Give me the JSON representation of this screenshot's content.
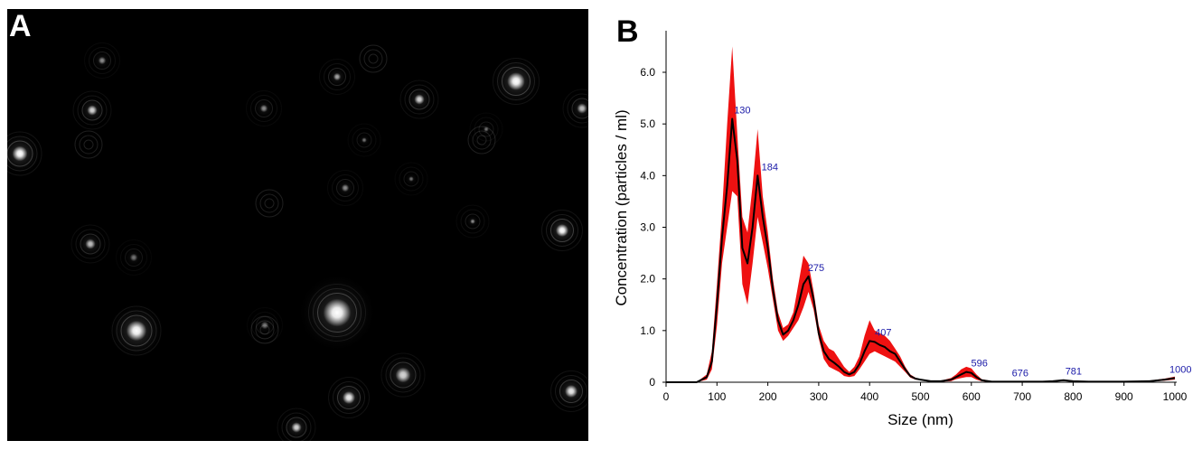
{
  "panel_a": {
    "label": "A",
    "image_description": "dark-field microscopy frame showing bright particles with diffraction rings"
  },
  "panel_b": {
    "label": "B"
  },
  "chart_data": {
    "type": "area",
    "title": "",
    "xlabel": "Size (nm)",
    "ylabel": "Concentration (particles / ml)",
    "xlim": [
      0,
      1000
    ],
    "ylim": [
      0,
      6.8
    ],
    "x_ticks": [
      "0",
      "100",
      "200",
      "300",
      "400",
      "500",
      "600",
      "700",
      "800",
      "900",
      "1000"
    ],
    "y_ticks": [
      "0",
      "1.0",
      "2.0",
      "3.0",
      "4.0",
      "5.0",
      "6.0"
    ],
    "grid": false,
    "series": [
      {
        "role": "mean",
        "color": "#000000",
        "x": [
          0,
          60,
          80,
          90,
          100,
          110,
          120,
          130,
          140,
          150,
          160,
          170,
          180,
          190,
          200,
          210,
          220,
          230,
          240,
          250,
          260,
          270,
          280,
          290,
          300,
          310,
          320,
          330,
          340,
          350,
          360,
          370,
          380,
          390,
          400,
          410,
          420,
          430,
          440,
          450,
          460,
          470,
          480,
          490,
          500,
          520,
          540,
          560,
          570,
          580,
          590,
          600,
          610,
          620,
          640,
          660,
          676,
          700,
          720,
          740,
          760,
          781,
          800,
          830,
          860,
          900,
          950,
          980,
          1000
        ],
        "values": [
          0,
          0,
          0.1,
          0.4,
          1.5,
          2.8,
          3.8,
          5.1,
          4.3,
          2.6,
          2.3,
          3.0,
          4.0,
          3.2,
          2.6,
          1.8,
          1.2,
          0.92,
          1.0,
          1.2,
          1.5,
          1.9,
          2.05,
          1.6,
          0.95,
          0.6,
          0.45,
          0.38,
          0.3,
          0.2,
          0.15,
          0.2,
          0.35,
          0.6,
          0.8,
          0.78,
          0.72,
          0.68,
          0.6,
          0.55,
          0.4,
          0.25,
          0.12,
          0.07,
          0.05,
          0.02,
          0.02,
          0.05,
          0.1,
          0.15,
          0.2,
          0.18,
          0.1,
          0.04,
          0.01,
          0.01,
          0.01,
          0.01,
          0.01,
          0.01,
          0.02,
          0.04,
          0.02,
          0.01,
          0.01,
          0.01,
          0.02,
          0.05,
          0.08
        ]
      },
      {
        "role": "error_band",
        "color": "#ee1111",
        "x": [
          0,
          60,
          80,
          90,
          100,
          110,
          120,
          130,
          140,
          150,
          160,
          170,
          180,
          190,
          200,
          210,
          220,
          230,
          240,
          250,
          260,
          270,
          280,
          290,
          300,
          310,
          320,
          330,
          340,
          350,
          360,
          370,
          380,
          390,
          400,
          410,
          420,
          430,
          440,
          450,
          460,
          470,
          480,
          490,
          500,
          520,
          540,
          560,
          570,
          580,
          590,
          600,
          610,
          620,
          640,
          660,
          676,
          700,
          720,
          740,
          760,
          781,
          800,
          830,
          860,
          900,
          950,
          980,
          1000
        ],
        "upper": [
          0,
          0,
          0.15,
          0.6,
          1.9,
          3.3,
          5.0,
          6.5,
          4.8,
          3.2,
          2.9,
          3.8,
          4.9,
          3.6,
          2.9,
          2.0,
          1.35,
          1.05,
          1.12,
          1.35,
          1.9,
          2.45,
          2.3,
          1.75,
          1.1,
          0.8,
          0.65,
          0.6,
          0.45,
          0.3,
          0.2,
          0.3,
          0.5,
          0.9,
          1.2,
          1.0,
          0.95,
          0.9,
          0.8,
          0.65,
          0.5,
          0.3,
          0.15,
          0.09,
          0.06,
          0.03,
          0.03,
          0.08,
          0.15,
          0.25,
          0.3,
          0.27,
          0.15,
          0.06,
          0.02,
          0.02,
          0.02,
          0.02,
          0.02,
          0.02,
          0.03,
          0.05,
          0.03,
          0.02,
          0.02,
          0.02,
          0.03,
          0.07,
          0.11
        ],
        "lower": [
          0,
          0,
          0.05,
          0.25,
          1.1,
          2.3,
          3.0,
          3.7,
          3.6,
          1.9,
          1.5,
          2.3,
          3.2,
          2.7,
          2.2,
          1.6,
          1.0,
          0.8,
          0.9,
          1.05,
          1.2,
          1.45,
          1.75,
          1.4,
          0.85,
          0.45,
          0.3,
          0.25,
          0.2,
          0.12,
          0.1,
          0.12,
          0.25,
          0.4,
          0.55,
          0.6,
          0.55,
          0.5,
          0.45,
          0.4,
          0.3,
          0.2,
          0.09,
          0.05,
          0.04,
          0.01,
          0.01,
          0.02,
          0.06,
          0.08,
          0.1,
          0.1,
          0.05,
          0.02,
          0,
          0,
          0,
          0,
          0,
          0,
          0.01,
          0.03,
          0.01,
          0,
          0,
          0,
          0.01,
          0.03,
          0.05
        ]
      }
    ],
    "peak_labels": [
      {
        "text": "130",
        "x": 130,
        "y": 5.1
      },
      {
        "text": "184",
        "x": 184,
        "y": 4.0
      },
      {
        "text": "275",
        "x": 275,
        "y": 2.05
      },
      {
        "text": "407",
        "x": 407,
        "y": 0.8
      },
      {
        "text": "596",
        "x": 596,
        "y": 0.2
      },
      {
        "text": "676",
        "x": 676,
        "y": 0.01
      },
      {
        "text": "781",
        "x": 781,
        "y": 0.04
      },
      {
        "text": "1000",
        "x": 1000,
        "y": 0.08
      }
    ],
    "peak_label_color": "#1a1aa8"
  }
}
